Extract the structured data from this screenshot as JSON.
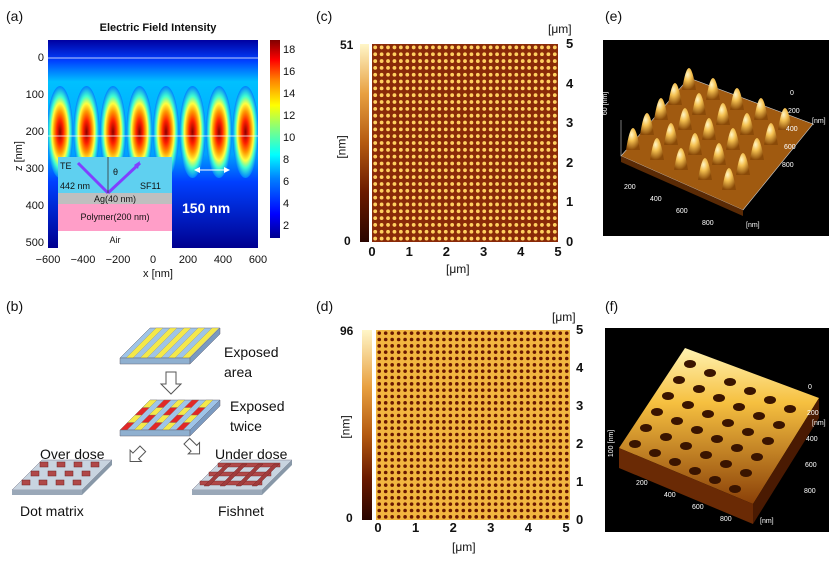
{
  "panel_labels": {
    "a": "(a)",
    "b": "(b)",
    "c": "(c)",
    "d": "(d)",
    "e": "(e)",
    "f": "(f)"
  },
  "panel_a": {
    "title": "Electric Field Intensity",
    "xlabel": "x [nm]",
    "ylabel": "z [nm]",
    "xticks": [
      "−600",
      "−400",
      "−200",
      "0",
      "200",
      "400",
      "600"
    ],
    "yticks": [
      "0",
      "100",
      "200",
      "300",
      "400",
      "500"
    ],
    "colorbar_ticks": [
      "18",
      "16",
      "14",
      "12",
      "10",
      "8",
      "6",
      "4",
      "2"
    ],
    "period_label": "150 nm",
    "inset": {
      "te": "TE",
      "theta": "θ",
      "wavelength": "442 nm",
      "prism": "SF11",
      "ag_layer": "Ag(40 nm)",
      "polymer_layer": "Polymer(200 nm)",
      "air": "Air"
    }
  },
  "panel_b": {
    "exposed_area": [
      "Exposed",
      "area"
    ],
    "exposed_twice": [
      "Exposed",
      "twice"
    ],
    "over_dose": "Over dose",
    "under_dose": "Under dose",
    "dot_matrix": "Dot matrix",
    "fishnet": "Fishnet"
  },
  "panel_c": {
    "top_unit": "[μm]",
    "xlabel": "[μm]",
    "ylabel": "[nm]",
    "colorbar_max": "51",
    "colorbar_min": "0",
    "xticks": [
      "0",
      "1",
      "2",
      "3",
      "4",
      "5"
    ],
    "yticks": [
      "5",
      "4",
      "3",
      "2",
      "1",
      "0"
    ]
  },
  "panel_d": {
    "top_unit": "[μm]",
    "xlabel": "[μm]",
    "ylabel": "[nm]",
    "colorbar_max": "96",
    "colorbar_min": "0",
    "xticks": [
      "0",
      "1",
      "2",
      "3",
      "4",
      "5"
    ],
    "yticks": [
      "5",
      "4",
      "3",
      "2",
      "1",
      "0"
    ]
  },
  "panel_e": {
    "zlabel": "60 [nm]",
    "x_ticks": [
      "200",
      "400",
      "600",
      "800"
    ],
    "y_ticks": [
      "0",
      "200",
      "400",
      "600",
      "800"
    ],
    "unit": "[nm]"
  },
  "panel_f": {
    "zlabel": "100 [nm]",
    "x_ticks": [
      "200",
      "400",
      "600",
      "800"
    ],
    "y_ticks": [
      "0",
      "200",
      "400",
      "600",
      "800"
    ],
    "unit": "[nm]"
  },
  "colors": {
    "jet_low": "#00008f",
    "jet_high": "#a00000",
    "afm_dark": "#3b0a00",
    "afm_light": "#fff6c8",
    "ag": "#bfbfbf",
    "polymer": "#ff9ec8",
    "prism": "#5fd0f0",
    "stripe_yellow": "#f4e84a",
    "stripe_blue": "#9ec4e8",
    "red": "#e02828"
  }
}
